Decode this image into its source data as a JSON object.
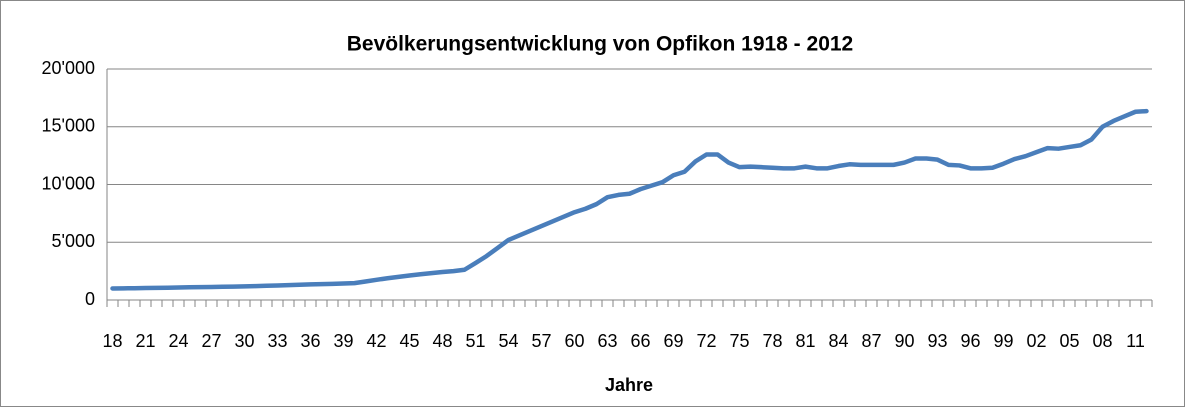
{
  "chart_data": {
    "type": "line",
    "title": "Bevölkerungsentwicklung von Opfikon  1918 - 2012",
    "x_label": "Jahre",
    "categories": [
      "18",
      null,
      null,
      "21",
      null,
      null,
      "24",
      null,
      null,
      "27",
      null,
      null,
      "30",
      null,
      null,
      "33",
      null,
      null,
      "36",
      null,
      null,
      "39",
      null,
      null,
      "42",
      null,
      null,
      "45",
      null,
      null,
      "48",
      null,
      null,
      "51",
      null,
      null,
      "54",
      null,
      null,
      "57",
      null,
      null,
      "60",
      null,
      null,
      "63",
      null,
      null,
      "66",
      null,
      null,
      "69",
      null,
      null,
      "72",
      null,
      null,
      "75",
      null,
      null,
      "78",
      null,
      null,
      "81",
      null,
      null,
      "84",
      null,
      null,
      "87",
      null,
      null,
      "90",
      null,
      null,
      "93",
      null,
      null,
      "96",
      null,
      null,
      "99",
      null,
      null,
      "02",
      null,
      null,
      "05",
      null,
      null,
      "08",
      null,
      null,
      "11",
      null
    ],
    "series": [
      {
        "color": "#4a7ebb",
        "values": [
          1000,
          1010,
          1020,
          1040,
          1050,
          1060,
          1080,
          1100,
          1110,
          1130,
          1150,
          1160,
          1180,
          1200,
          1230,
          1260,
          1290,
          1320,
          1350,
          1370,
          1400,
          1430,
          1460,
          1600,
          1750,
          1880,
          2000,
          2120,
          2230,
          2330,
          2420,
          2500,
          2620,
          3200,
          3800,
          4500,
          5200,
          5600,
          6000,
          6400,
          6800,
          7200,
          7600,
          7900,
          8300,
          8900,
          9100,
          9200,
          9600,
          9900,
          10200,
          10800,
          11100,
          12000,
          12600,
          12600,
          11900,
          11500,
          11550,
          11500,
          11450,
          11400,
          11400,
          11550,
          11400,
          11400,
          11600,
          11750,
          11700,
          11700,
          11700,
          11700,
          11900,
          12250,
          12250,
          12150,
          11700,
          11650,
          11400,
          11400,
          11450,
          11800,
          12200,
          12450,
          12800,
          13150,
          13100,
          13250,
          13400,
          13900,
          15000,
          15500,
          15900,
          16300,
          16350
        ]
      }
    ],
    "ylim": [
      0,
      20000
    ],
    "yticks": [
      0,
      {
        "value": 5000,
        "label": "5'000"
      },
      {
        "value": 10000,
        "label": "10'000"
      },
      {
        "value": 15000,
        "label": "15'000"
      },
      {
        "value": 20000,
        "label": "20'000"
      }
    ],
    "grid": true
  }
}
